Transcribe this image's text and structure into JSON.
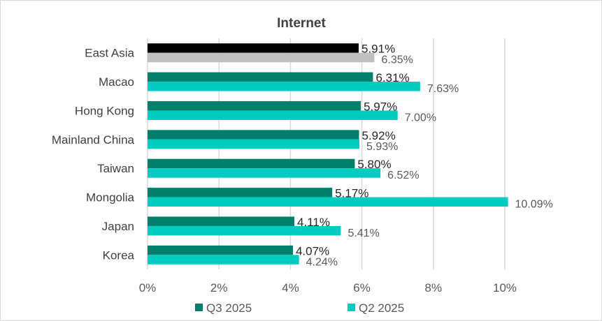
{
  "chart_data": {
    "type": "bar",
    "orientation": "horizontal",
    "title": "Internet",
    "categories": [
      "East Asia",
      "Macao",
      "Hong Kong",
      "Mainland China",
      "Taiwan",
      "Mongolia",
      "Japan",
      "Korea"
    ],
    "series": [
      {
        "name": "Q3 2025",
        "color": "#007F6B",
        "highlight_color": "#000000",
        "values": [
          5.91,
          6.31,
          5.97,
          5.92,
          5.8,
          5.17,
          4.11,
          4.07
        ],
        "labels": [
          "5.91%",
          "6.31%",
          "5.97%",
          "5.92%",
          "5.80%",
          "5.17%",
          "4.11%",
          "4.07%"
        ]
      },
      {
        "name": "Q2 2025",
        "color": "#00CCC0",
        "highlight_color": "#BFBFBF",
        "values": [
          6.35,
          7.63,
          7.0,
          5.93,
          6.52,
          10.09,
          5.41,
          4.24
        ],
        "labels": [
          "6.35%",
          "7.63%",
          "7.00%",
          "5.93%",
          "6.52%",
          "10.09%",
          "5.41%",
          "4.24%"
        ]
      }
    ],
    "highlight_category": "East Asia",
    "xlim": [
      0,
      12
    ],
    "x_ticks": [
      0,
      2,
      4,
      6,
      8,
      10
    ],
    "x_tick_labels": [
      "0%",
      "2%",
      "4%",
      "6%",
      "8%",
      "10%"
    ],
    "grid": true,
    "legend": "bottom"
  }
}
